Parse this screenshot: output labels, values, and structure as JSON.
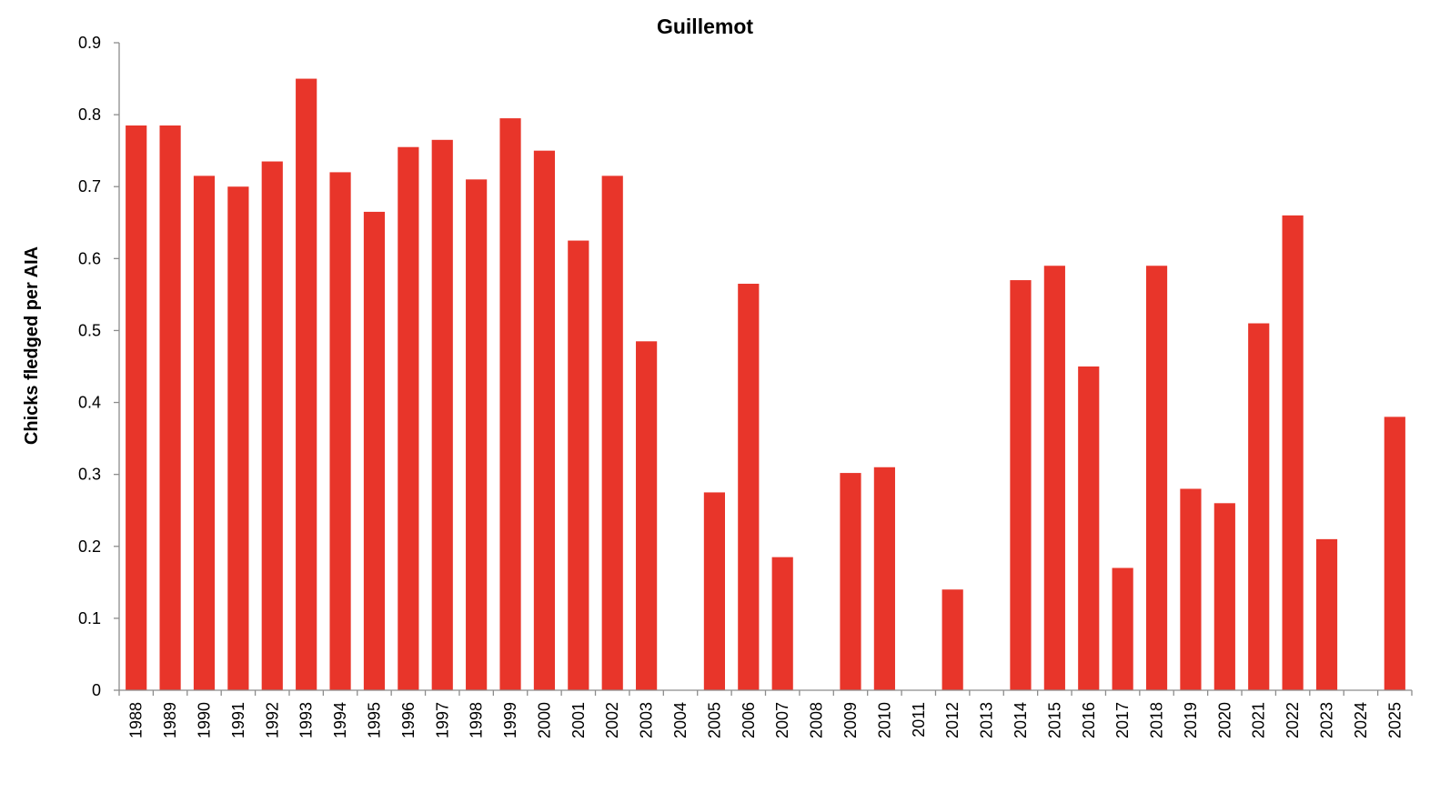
{
  "chart_data": {
    "type": "bar",
    "title": "Guillemot",
    "xlabel": "",
    "ylabel": "Chicks fledged per AIA",
    "ylim": [
      0,
      0.9
    ],
    "yticks": [
      0,
      0.1,
      0.2,
      0.3,
      0.4,
      0.5,
      0.6,
      0.7,
      0.8,
      0.9
    ],
    "grid": false,
    "bar_color": "#e8352a",
    "categories": [
      "1988",
      "1989",
      "1990",
      "1991",
      "1992",
      "1993",
      "1994",
      "1995",
      "1996",
      "1997",
      "1998",
      "1999",
      "2000",
      "2001",
      "2002",
      "2003",
      "2004",
      "2005",
      "2006",
      "2007",
      "2008",
      "2009",
      "2010",
      "2011",
      "2012",
      "2013",
      "2014",
      "2015",
      "2016",
      "2017",
      "2018",
      "2019",
      "2020",
      "2021",
      "2022",
      "2023",
      "2024",
      "2025"
    ],
    "values": [
      0.785,
      0.785,
      0.715,
      0.7,
      0.735,
      0.85,
      0.72,
      0.665,
      0.755,
      0.765,
      0.71,
      0.795,
      0.75,
      0.625,
      0.715,
      0.485,
      null,
      0.275,
      0.565,
      0.185,
      null,
      0.302,
      0.31,
      null,
      0.14,
      null,
      0.57,
      0.59,
      0.45,
      0.17,
      0.59,
      0.28,
      0.26,
      0.51,
      0.66,
      0.21,
      null,
      0.38
    ]
  }
}
